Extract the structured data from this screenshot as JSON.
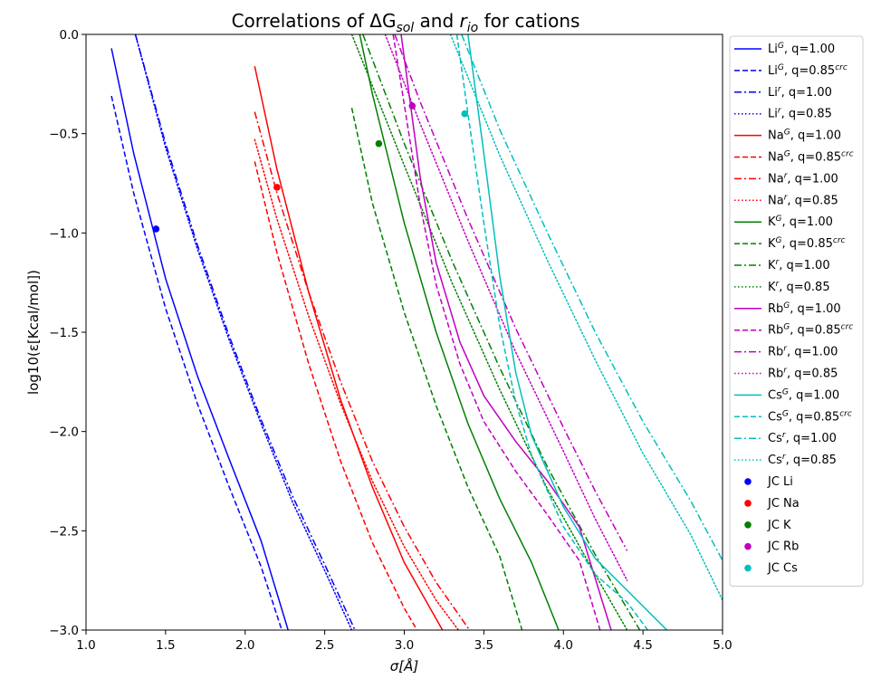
{
  "chart_data": {
    "type": "line",
    "title": "Correlations of ΔG_sol and r_io for cations",
    "xlabel": "σ[Å]",
    "ylabel": "log10(ε[Kcal/mol])",
    "xlim": [
      1.0,
      5.0
    ],
    "ylim": [
      -3.0,
      0.0
    ],
    "xticks": [
      "1.0",
      "1.5",
      "2.0",
      "2.5",
      "3.0",
      "3.5",
      "4.0",
      "4.5",
      "5.0"
    ],
    "yticks": [
      "0.0",
      "−0.5",
      "−1.0",
      "−1.5",
      "−2.0",
      "−2.5",
      "−3.0"
    ],
    "grid": false,
    "legend_position": "right, outside plot",
    "series": [
      {
        "name": "Li^G, q=1.00",
        "color": "#0000ff",
        "style": "solid",
        "points": [
          [
            1.16,
            -0.07
          ],
          [
            1.3,
            -0.6
          ],
          [
            1.5,
            -1.23
          ],
          [
            1.7,
            -1.72
          ],
          [
            1.9,
            -2.14
          ],
          [
            2.1,
            -2.55
          ],
          [
            2.27,
            -3.0
          ]
        ]
      },
      {
        "name": "Li^G, q=0.85^crc",
        "color": "#0000ff",
        "style": "dashed",
        "points": [
          [
            1.16,
            -0.31
          ],
          [
            1.3,
            -0.8
          ],
          [
            1.5,
            -1.38
          ],
          [
            1.7,
            -1.86
          ],
          [
            1.9,
            -2.28
          ],
          [
            2.1,
            -2.68
          ],
          [
            2.23,
            -3.0
          ]
        ]
      },
      {
        "name": "Li^r, q=1.00",
        "color": "#0000ff",
        "style": "dashdot",
        "points": [
          [
            1.31,
            0.0
          ],
          [
            1.5,
            -0.55
          ],
          [
            1.7,
            -1.06
          ],
          [
            1.9,
            -1.52
          ],
          [
            2.1,
            -1.94
          ],
          [
            2.3,
            -2.33
          ],
          [
            2.5,
            -2.67
          ],
          [
            2.69,
            -3.0
          ]
        ]
      },
      {
        "name": "Li^r, q=0.85",
        "color": "#0000ff",
        "style": "dotted",
        "points": [
          [
            1.31,
            0.0
          ],
          [
            1.5,
            -0.57
          ],
          [
            1.7,
            -1.08
          ],
          [
            1.9,
            -1.54
          ],
          [
            2.1,
            -1.96
          ],
          [
            2.3,
            -2.36
          ],
          [
            2.5,
            -2.7
          ],
          [
            2.67,
            -3.0
          ]
        ]
      },
      {
        "name": "Na^G, q=1.00",
        "color": "#ff0000",
        "style": "solid",
        "points": [
          [
            2.06,
            -0.16
          ],
          [
            2.2,
            -0.68
          ],
          [
            2.4,
            -1.3
          ],
          [
            2.6,
            -1.84
          ],
          [
            2.8,
            -2.28
          ],
          [
            3.0,
            -2.66
          ],
          [
            3.24,
            -3.0
          ]
        ]
      },
      {
        "name": "Na^G, q=0.85^crc",
        "color": "#ff0000",
        "style": "dashed",
        "points": [
          [
            2.06,
            -0.64
          ],
          [
            2.2,
            -1.1
          ],
          [
            2.4,
            -1.66
          ],
          [
            2.6,
            -2.15
          ],
          [
            2.8,
            -2.56
          ],
          [
            3.0,
            -2.89
          ],
          [
            3.08,
            -3.0
          ]
        ]
      },
      {
        "name": "Na^r, q=1.00",
        "color": "#ff0000",
        "style": "dashdot",
        "points": [
          [
            2.06,
            -0.39
          ],
          [
            2.2,
            -0.8
          ],
          [
            2.4,
            -1.3
          ],
          [
            2.6,
            -1.75
          ],
          [
            2.8,
            -2.15
          ],
          [
            3.0,
            -2.48
          ],
          [
            3.2,
            -2.76
          ],
          [
            3.41,
            -3.0
          ]
        ]
      },
      {
        "name": "Na^r, q=0.85",
        "color": "#ff0000",
        "style": "dotted",
        "points": [
          [
            2.06,
            -0.53
          ],
          [
            2.2,
            -0.93
          ],
          [
            2.4,
            -1.42
          ],
          [
            2.6,
            -1.86
          ],
          [
            2.8,
            -2.25
          ],
          [
            3.0,
            -2.58
          ],
          [
            3.2,
            -2.85
          ],
          [
            3.34,
            -3.0
          ]
        ]
      },
      {
        "name": "K^G, q=1.00",
        "color": "#008000",
        "style": "solid",
        "points": [
          [
            2.72,
            0.0
          ],
          [
            2.8,
            -0.3
          ],
          [
            3.0,
            -0.95
          ],
          [
            3.2,
            -1.5
          ],
          [
            3.4,
            -1.96
          ],
          [
            3.6,
            -2.34
          ],
          [
            3.8,
            -2.66
          ],
          [
            3.97,
            -3.0
          ]
        ]
      },
      {
        "name": "K^G, q=0.85^crc",
        "color": "#008000",
        "style": "dashed",
        "points": [
          [
            2.67,
            -0.37
          ],
          [
            2.8,
            -0.85
          ],
          [
            3.0,
            -1.4
          ],
          [
            3.2,
            -1.87
          ],
          [
            3.4,
            -2.28
          ],
          [
            3.6,
            -2.63
          ],
          [
            3.74,
            -3.0
          ]
        ]
      },
      {
        "name": "K^r, q=1.00",
        "color": "#008000",
        "style": "dashdot",
        "points": [
          [
            2.74,
            0.0
          ],
          [
            3.0,
            -0.55
          ],
          [
            3.3,
            -1.14
          ],
          [
            3.6,
            -1.68
          ],
          [
            3.9,
            -2.18
          ],
          [
            4.2,
            -2.62
          ],
          [
            4.48,
            -3.0
          ]
        ]
      },
      {
        "name": "K^r, q=0.85",
        "color": "#008000",
        "style": "dotted",
        "points": [
          [
            2.67,
            0.0
          ],
          [
            3.0,
            -0.66
          ],
          [
            3.3,
            -1.25
          ],
          [
            3.6,
            -1.79
          ],
          [
            3.9,
            -2.29
          ],
          [
            4.2,
            -2.72
          ],
          [
            4.4,
            -3.0
          ]
        ]
      },
      {
        "name": "Rb^G, q=1.00",
        "color": "#c000c0",
        "style": "solid",
        "points": [
          [
            2.98,
            0.0
          ],
          [
            3.1,
            -0.72
          ],
          [
            3.2,
            -1.15
          ],
          [
            3.35,
            -1.55
          ],
          [
            3.5,
            -1.82
          ],
          [
            3.7,
            -2.05
          ],
          [
            3.9,
            -2.25
          ],
          [
            4.1,
            -2.48
          ],
          [
            4.3,
            -3.0
          ]
        ]
      },
      {
        "name": "Rb^G, q=0.85^crc",
        "color": "#c000c0",
        "style": "dashed",
        "points": [
          [
            2.93,
            0.0
          ],
          [
            3.1,
            -0.86
          ],
          [
            3.2,
            -1.26
          ],
          [
            3.35,
            -1.66
          ],
          [
            3.5,
            -1.95
          ],
          [
            3.7,
            -2.2
          ],
          [
            3.9,
            -2.42
          ],
          [
            4.1,
            -2.65
          ],
          [
            4.23,
            -3.0
          ]
        ]
      },
      {
        "name": "Rb^r, q=1.00",
        "color": "#c000c0",
        "style": "dashdot",
        "points": [
          [
            2.94,
            0.0
          ],
          [
            3.1,
            -0.34
          ],
          [
            3.4,
            -0.93
          ],
          [
            3.7,
            -1.48
          ],
          [
            4.0,
            -1.98
          ],
          [
            4.2,
            -2.3
          ],
          [
            4.4,
            -2.6
          ]
        ]
      },
      {
        "name": "Rb^r, q=0.85",
        "color": "#c000c0",
        "style": "dotted",
        "points": [
          [
            2.88,
            0.0
          ],
          [
            3.1,
            -0.45
          ],
          [
            3.4,
            -1.04
          ],
          [
            3.7,
            -1.6
          ],
          [
            4.0,
            -2.1
          ],
          [
            4.2,
            -2.44
          ],
          [
            4.4,
            -2.75
          ]
        ]
      },
      {
        "name": "Cs^G, q=1.00",
        "color": "#00bfbf",
        "style": "solid",
        "points": [
          [
            3.4,
            0.0
          ],
          [
            3.5,
            -0.6
          ],
          [
            3.6,
            -1.22
          ],
          [
            3.7,
            -1.7
          ],
          [
            3.8,
            -2.02
          ],
          [
            4.0,
            -2.38
          ],
          [
            4.2,
            -2.64
          ],
          [
            4.4,
            -2.8
          ],
          [
            4.65,
            -3.0
          ]
        ]
      },
      {
        "name": "Cs^G, q=0.85^crc",
        "color": "#00bfbf",
        "style": "dashed",
        "points": [
          [
            3.33,
            0.0
          ],
          [
            3.4,
            -0.4
          ],
          [
            3.5,
            -0.95
          ],
          [
            3.6,
            -1.47
          ],
          [
            3.7,
            -1.85
          ],
          [
            3.8,
            -2.12
          ],
          [
            4.0,
            -2.48
          ],
          [
            4.2,
            -2.72
          ],
          [
            4.4,
            -2.86
          ],
          [
            4.53,
            -3.0
          ]
        ]
      },
      {
        "name": "Cs^r, q=1.00",
        "color": "#00bfbf",
        "style": "dashdot",
        "points": [
          [
            3.36,
            0.0
          ],
          [
            3.6,
            -0.48
          ],
          [
            3.9,
            -1.0
          ],
          [
            4.2,
            -1.5
          ],
          [
            4.5,
            -1.95
          ],
          [
            4.8,
            -2.35
          ],
          [
            5.0,
            -2.65
          ]
        ]
      },
      {
        "name": "Cs^r, q=0.85",
        "color": "#00bfbf",
        "style": "dotted",
        "points": [
          [
            3.29,
            0.0
          ],
          [
            3.6,
            -0.61
          ],
          [
            3.9,
            -1.14
          ],
          [
            4.2,
            -1.64
          ],
          [
            4.5,
            -2.11
          ],
          [
            4.8,
            -2.52
          ],
          [
            5.0,
            -2.85
          ]
        ]
      }
    ],
    "scatter": [
      {
        "name": "JC Li",
        "color": "#0000ff",
        "x": 1.44,
        "y": -0.98
      },
      {
        "name": "JC Na",
        "color": "#ff0000",
        "x": 2.2,
        "y": -0.77
      },
      {
        "name": "JC K",
        "color": "#008000",
        "x": 2.84,
        "y": -0.55
      },
      {
        "name": "JC Rb",
        "color": "#c000c0",
        "x": 3.05,
        "y": -0.36
      },
      {
        "name": "JC Cs",
        "color": "#00bfbf",
        "x": 3.38,
        "y": -0.4
      }
    ]
  }
}
